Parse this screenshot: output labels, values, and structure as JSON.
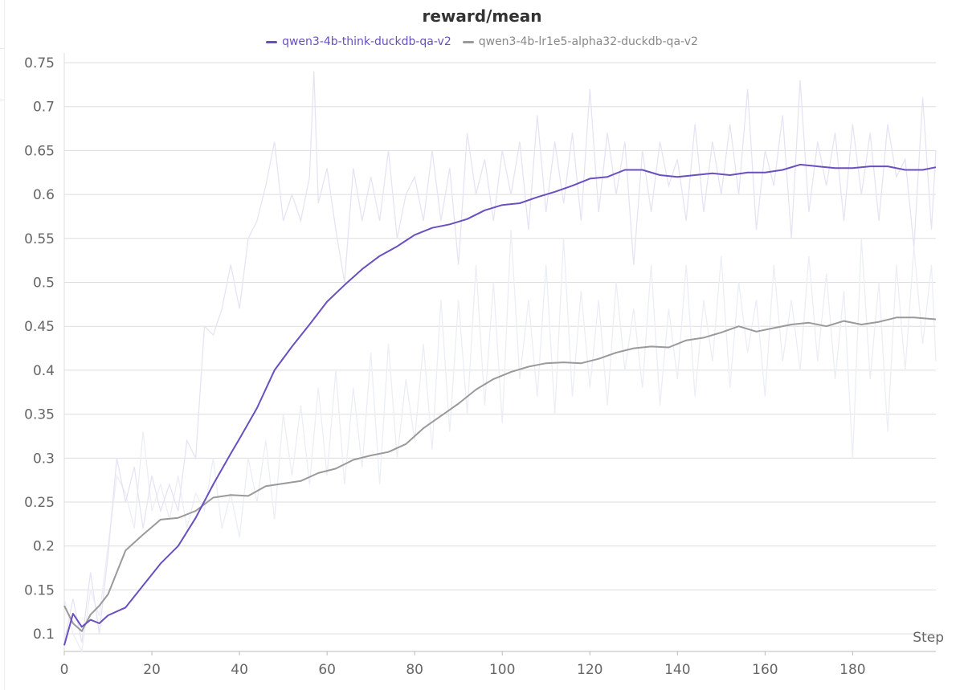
{
  "colors": {
    "series1": "#6a4fbf",
    "series2": "#9a9a9a",
    "raw1": "#e6e4f4",
    "raw2": "#eceef6",
    "grid": "#dddddd"
  },
  "chart_data": {
    "type": "line",
    "title": "reward/mean",
    "xlabel": "Step",
    "ylabel": "",
    "xlim": [
      0,
      199
    ],
    "ylim": [
      0.08,
      0.75
    ],
    "grid": true,
    "legend": "top-center",
    "xticks": [
      0,
      20,
      40,
      60,
      80,
      100,
      120,
      140,
      160,
      180
    ],
    "xtick_labels": [
      "0",
      "20",
      "40",
      "60",
      "80",
      "100",
      "120",
      "140",
      "160",
      "180"
    ],
    "yticks": [
      0.1,
      0.15,
      0.2,
      0.25,
      0.3,
      0.35,
      0.4,
      0.45,
      0.5,
      0.55,
      0.6,
      0.65,
      0.7,
      0.75
    ],
    "ytick_labels": [
      "0.1",
      "0.15",
      "0.2",
      "0.25",
      "0.3",
      "0.35",
      "0.4",
      "0.45",
      "0.5",
      "0.55",
      "0.6",
      "0.65",
      "0.7",
      "0.75"
    ],
    "series": [
      {
        "name": "qwen3-4b-think-duckdb-qa-v2",
        "smoothed": [
          [
            0,
            0.087
          ],
          [
            2,
            0.123
          ],
          [
            4,
            0.108
          ],
          [
            6,
            0.116
          ],
          [
            8,
            0.112
          ],
          [
            10,
            0.121
          ],
          [
            14,
            0.13
          ],
          [
            18,
            0.155
          ],
          [
            22,
            0.18
          ],
          [
            26,
            0.2
          ],
          [
            30,
            0.232
          ],
          [
            34,
            0.27
          ],
          [
            38,
            0.305
          ],
          [
            40,
            0.322
          ],
          [
            44,
            0.357
          ],
          [
            48,
            0.4
          ],
          [
            52,
            0.427
          ],
          [
            56,
            0.452
          ],
          [
            60,
            0.478
          ],
          [
            64,
            0.497
          ],
          [
            68,
            0.515
          ],
          [
            72,
            0.53
          ],
          [
            76,
            0.541
          ],
          [
            80,
            0.554
          ],
          [
            84,
            0.562
          ],
          [
            88,
            0.566
          ],
          [
            92,
            0.572
          ],
          [
            96,
            0.582
          ],
          [
            100,
            0.588
          ],
          [
            104,
            0.59
          ],
          [
            108,
            0.597
          ],
          [
            112,
            0.603
          ],
          [
            116,
            0.61
          ],
          [
            120,
            0.618
          ],
          [
            124,
            0.62
          ],
          [
            128,
            0.628
          ],
          [
            132,
            0.628
          ],
          [
            136,
            0.622
          ],
          [
            140,
            0.62
          ],
          [
            144,
            0.622
          ],
          [
            148,
            0.624
          ],
          [
            152,
            0.622
          ],
          [
            156,
            0.625
          ],
          [
            160,
            0.625
          ],
          [
            164,
            0.628
          ],
          [
            168,
            0.634
          ],
          [
            172,
            0.632
          ],
          [
            176,
            0.63
          ],
          [
            180,
            0.63
          ],
          [
            184,
            0.632
          ],
          [
            188,
            0.632
          ],
          [
            192,
            0.628
          ],
          [
            196,
            0.628
          ],
          [
            199,
            0.631
          ]
        ],
        "raw": [
          [
            0,
            0.09
          ],
          [
            2,
            0.14
          ],
          [
            4,
            0.09
          ],
          [
            6,
            0.17
          ],
          [
            8,
            0.1
          ],
          [
            10,
            0.19
          ],
          [
            12,
            0.3
          ],
          [
            14,
            0.25
          ],
          [
            16,
            0.29
          ],
          [
            18,
            0.22
          ],
          [
            20,
            0.28
          ],
          [
            22,
            0.24
          ],
          [
            24,
            0.27
          ],
          [
            26,
            0.24
          ],
          [
            28,
            0.32
          ],
          [
            30,
            0.3
          ],
          [
            32,
            0.45
          ],
          [
            34,
            0.44
          ],
          [
            36,
            0.47
          ],
          [
            38,
            0.52
          ],
          [
            40,
            0.47
          ],
          [
            42,
            0.55
          ],
          [
            44,
            0.57
          ],
          [
            46,
            0.61
          ],
          [
            48,
            0.66
          ],
          [
            50,
            0.57
          ],
          [
            52,
            0.6
          ],
          [
            54,
            0.57
          ],
          [
            56,
            0.62
          ],
          [
            57,
            0.74
          ],
          [
            58,
            0.59
          ],
          [
            60,
            0.63
          ],
          [
            62,
            0.56
          ],
          [
            64,
            0.5
          ],
          [
            66,
            0.63
          ],
          [
            68,
            0.57
          ],
          [
            70,
            0.62
          ],
          [
            72,
            0.57
          ],
          [
            74,
            0.65
          ],
          [
            76,
            0.55
          ],
          [
            78,
            0.6
          ],
          [
            80,
            0.62
          ],
          [
            82,
            0.57
          ],
          [
            84,
            0.65
          ],
          [
            86,
            0.57
          ],
          [
            88,
            0.63
          ],
          [
            90,
            0.52
          ],
          [
            92,
            0.67
          ],
          [
            94,
            0.6
          ],
          [
            96,
            0.64
          ],
          [
            98,
            0.57
          ],
          [
            100,
            0.65
          ],
          [
            102,
            0.6
          ],
          [
            104,
            0.66
          ],
          [
            106,
            0.56
          ],
          [
            108,
            0.69
          ],
          [
            110,
            0.58
          ],
          [
            112,
            0.66
          ],
          [
            114,
            0.59
          ],
          [
            116,
            0.67
          ],
          [
            118,
            0.57
          ],
          [
            120,
            0.72
          ],
          [
            122,
            0.58
          ],
          [
            124,
            0.67
          ],
          [
            126,
            0.6
          ],
          [
            128,
            0.66
          ],
          [
            130,
            0.52
          ],
          [
            132,
            0.65
          ],
          [
            134,
            0.58
          ],
          [
            136,
            0.66
          ],
          [
            138,
            0.61
          ],
          [
            140,
            0.64
          ],
          [
            142,
            0.57
          ],
          [
            144,
            0.68
          ],
          [
            146,
            0.58
          ],
          [
            148,
            0.66
          ],
          [
            150,
            0.6
          ],
          [
            152,
            0.68
          ],
          [
            154,
            0.6
          ],
          [
            156,
            0.72
          ],
          [
            158,
            0.56
          ],
          [
            160,
            0.65
          ],
          [
            162,
            0.61
          ],
          [
            164,
            0.69
          ],
          [
            166,
            0.55
          ],
          [
            168,
            0.73
          ],
          [
            170,
            0.58
          ],
          [
            172,
            0.66
          ],
          [
            174,
            0.61
          ],
          [
            176,
            0.67
          ],
          [
            178,
            0.57
          ],
          [
            180,
            0.68
          ],
          [
            182,
            0.6
          ],
          [
            184,
            0.67
          ],
          [
            186,
            0.57
          ],
          [
            188,
            0.68
          ],
          [
            190,
            0.62
          ],
          [
            192,
            0.64
          ],
          [
            194,
            0.54
          ],
          [
            196,
            0.71
          ],
          [
            198,
            0.56
          ],
          [
            199,
            0.65
          ]
        ]
      },
      {
        "name": "qwen3-4b-lr1e5-alpha32-duckdb-qa-v2",
        "smoothed": [
          [
            0,
            0.132
          ],
          [
            2,
            0.112
          ],
          [
            4,
            0.103
          ],
          [
            6,
            0.122
          ],
          [
            8,
            0.132
          ],
          [
            10,
            0.145
          ],
          [
            14,
            0.195
          ],
          [
            18,
            0.213
          ],
          [
            22,
            0.23
          ],
          [
            26,
            0.232
          ],
          [
            30,
            0.24
          ],
          [
            34,
            0.255
          ],
          [
            38,
            0.258
          ],
          [
            42,
            0.257
          ],
          [
            46,
            0.268
          ],
          [
            50,
            0.271
          ],
          [
            54,
            0.274
          ],
          [
            58,
            0.283
          ],
          [
            62,
            0.288
          ],
          [
            66,
            0.298
          ],
          [
            70,
            0.303
          ],
          [
            74,
            0.307
          ],
          [
            78,
            0.316
          ],
          [
            82,
            0.334
          ],
          [
            86,
            0.348
          ],
          [
            90,
            0.362
          ],
          [
            94,
            0.378
          ],
          [
            98,
            0.39
          ],
          [
            102,
            0.398
          ],
          [
            106,
            0.404
          ],
          [
            110,
            0.408
          ],
          [
            114,
            0.409
          ],
          [
            118,
            0.408
          ],
          [
            122,
            0.413
          ],
          [
            126,
            0.42
          ],
          [
            130,
            0.425
          ],
          [
            134,
            0.427
          ],
          [
            138,
            0.426
          ],
          [
            142,
            0.434
          ],
          [
            146,
            0.437
          ],
          [
            150,
            0.443
          ],
          [
            154,
            0.45
          ],
          [
            158,
            0.444
          ],
          [
            162,
            0.448
          ],
          [
            166,
            0.452
          ],
          [
            170,
            0.454
          ],
          [
            174,
            0.45
          ],
          [
            178,
            0.456
          ],
          [
            182,
            0.452
          ],
          [
            186,
            0.455
          ],
          [
            190,
            0.46
          ],
          [
            194,
            0.46
          ],
          [
            199,
            0.458
          ]
        ],
        "raw": [
          [
            0,
            0.14
          ],
          [
            2,
            0.1
          ],
          [
            4,
            0.08
          ],
          [
            6,
            0.15
          ],
          [
            8,
            0.12
          ],
          [
            10,
            0.2
          ],
          [
            12,
            0.28
          ],
          [
            14,
            0.26
          ],
          [
            16,
            0.22
          ],
          [
            18,
            0.33
          ],
          [
            20,
            0.24
          ],
          [
            22,
            0.27
          ],
          [
            24,
            0.23
          ],
          [
            26,
            0.28
          ],
          [
            28,
            0.22
          ],
          [
            30,
            0.26
          ],
          [
            32,
            0.24
          ],
          [
            34,
            0.3
          ],
          [
            36,
            0.22
          ],
          [
            38,
            0.26
          ],
          [
            40,
            0.21
          ],
          [
            42,
            0.3
          ],
          [
            44,
            0.25
          ],
          [
            46,
            0.32
          ],
          [
            48,
            0.23
          ],
          [
            50,
            0.35
          ],
          [
            52,
            0.28
          ],
          [
            54,
            0.36
          ],
          [
            56,
            0.27
          ],
          [
            58,
            0.38
          ],
          [
            60,
            0.28
          ],
          [
            62,
            0.4
          ],
          [
            64,
            0.27
          ],
          [
            66,
            0.38
          ],
          [
            68,
            0.29
          ],
          [
            70,
            0.42
          ],
          [
            72,
            0.27
          ],
          [
            74,
            0.43
          ],
          [
            76,
            0.3
          ],
          [
            78,
            0.39
          ],
          [
            80,
            0.32
          ],
          [
            82,
            0.43
          ],
          [
            84,
            0.31
          ],
          [
            86,
            0.48
          ],
          [
            88,
            0.33
          ],
          [
            90,
            0.48
          ],
          [
            92,
            0.35
          ],
          [
            94,
            0.52
          ],
          [
            96,
            0.36
          ],
          [
            98,
            0.5
          ],
          [
            100,
            0.34
          ],
          [
            102,
            0.56
          ],
          [
            104,
            0.39
          ],
          [
            106,
            0.48
          ],
          [
            108,
            0.37
          ],
          [
            110,
            0.52
          ],
          [
            112,
            0.35
          ],
          [
            114,
            0.55
          ],
          [
            116,
            0.37
          ],
          [
            118,
            0.49
          ],
          [
            120,
            0.38
          ],
          [
            122,
            0.48
          ],
          [
            124,
            0.36
          ],
          [
            126,
            0.5
          ],
          [
            128,
            0.4
          ],
          [
            130,
            0.47
          ],
          [
            132,
            0.38
          ],
          [
            134,
            0.52
          ],
          [
            136,
            0.36
          ],
          [
            138,
            0.47
          ],
          [
            140,
            0.39
          ],
          [
            142,
            0.52
          ],
          [
            144,
            0.37
          ],
          [
            146,
            0.48
          ],
          [
            148,
            0.41
          ],
          [
            150,
            0.53
          ],
          [
            152,
            0.38
          ],
          [
            154,
            0.5
          ],
          [
            156,
            0.42
          ],
          [
            158,
            0.48
          ],
          [
            160,
            0.37
          ],
          [
            162,
            0.52
          ],
          [
            164,
            0.41
          ],
          [
            166,
            0.48
          ],
          [
            168,
            0.4
          ],
          [
            170,
            0.53
          ],
          [
            172,
            0.41
          ],
          [
            174,
            0.51
          ],
          [
            176,
            0.39
          ],
          [
            178,
            0.49
          ],
          [
            180,
            0.3
          ],
          [
            182,
            0.55
          ],
          [
            184,
            0.39
          ],
          [
            186,
            0.5
          ],
          [
            188,
            0.33
          ],
          [
            190,
            0.52
          ],
          [
            192,
            0.4
          ],
          [
            194,
            0.54
          ],
          [
            196,
            0.43
          ],
          [
            198,
            0.52
          ],
          [
            199,
            0.41
          ]
        ]
      }
    ]
  }
}
